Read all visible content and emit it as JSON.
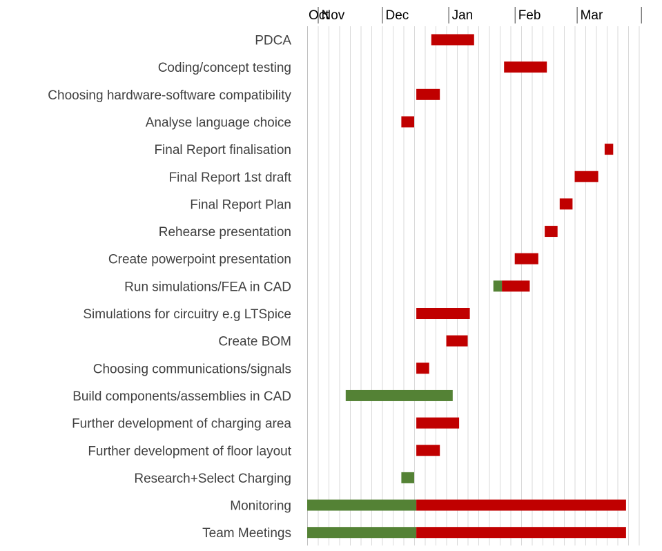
{
  "chart_data": {
    "type": "bar",
    "subtype": "gantt",
    "title": "",
    "xlabel": "",
    "ylabel": "",
    "x_axis_position": "top",
    "grid": true,
    "legend": "none",
    "colors": {
      "completed": "#548235",
      "remaining": "#c00000"
    },
    "months": [
      {
        "label": "Oct",
        "start_day": 0
      },
      {
        "label": "Nov",
        "start_day": 5
      },
      {
        "label": "Dec",
        "start_day": 35
      },
      {
        "label": "Jan",
        "start_day": 66
      },
      {
        "label": "Feb",
        "start_day": 97
      },
      {
        "label": "Mar",
        "start_day": 126
      }
    ],
    "x_range_days": [
      0,
      157
    ],
    "tasks": [
      {
        "name": "PDCA",
        "start_day": 58,
        "end_day": 78,
        "completed_days": 0
      },
      {
        "name": "Coding/concept testing",
        "start_day": 92,
        "end_day": 112,
        "completed_days": 0
      },
      {
        "name": "Choosing hardware-software compatibility",
        "start_day": 51,
        "end_day": 62,
        "completed_days": 0
      },
      {
        "name": "Analyse language choice",
        "start_day": 44,
        "end_day": 50,
        "completed_days": 0
      },
      {
        "name": "Final Report finalisation",
        "start_day": 139,
        "end_day": 143,
        "completed_days": 0
      },
      {
        "name": "Final Report 1st draft",
        "start_day": 125,
        "end_day": 136,
        "completed_days": 0
      },
      {
        "name": "Final Report Plan",
        "start_day": 118,
        "end_day": 124,
        "completed_days": 0
      },
      {
        "name": "Rehearse presentation",
        "start_day": 111,
        "end_day": 117,
        "completed_days": 0
      },
      {
        "name": "Create powerpoint presentation",
        "start_day": 97,
        "end_day": 108,
        "completed_days": 0
      },
      {
        "name": "Run simulations/FEA in CAD",
        "start_day": 87,
        "end_day": 104,
        "completed_days": 4
      },
      {
        "name": "Simulations for circuitry e.g LTSpice",
        "start_day": 51,
        "end_day": 76,
        "completed_days": 0
      },
      {
        "name": "Create BOM",
        "start_day": 65,
        "end_day": 75,
        "completed_days": 0
      },
      {
        "name": "Choosing communications/signals",
        "start_day": 51,
        "end_day": 57,
        "completed_days": 0
      },
      {
        "name": "Build components/assemblies in CAD",
        "start_day": 18,
        "end_day": 68,
        "completed_days": 50
      },
      {
        "name": "Further development of charging area",
        "start_day": 51,
        "end_day": 71,
        "completed_days": 0
      },
      {
        "name": "Further development of floor layout",
        "start_day": 51,
        "end_day": 62,
        "completed_days": 0
      },
      {
        "name": "Research+Select Charging",
        "start_day": 44,
        "end_day": 50,
        "completed_days": 6
      },
      {
        "name": "Monitoring",
        "start_day": 0,
        "end_day": 149,
        "completed_days": 51
      },
      {
        "name": "Team Meetings",
        "start_day": 0,
        "end_day": 149,
        "completed_days": 51
      }
    ]
  }
}
